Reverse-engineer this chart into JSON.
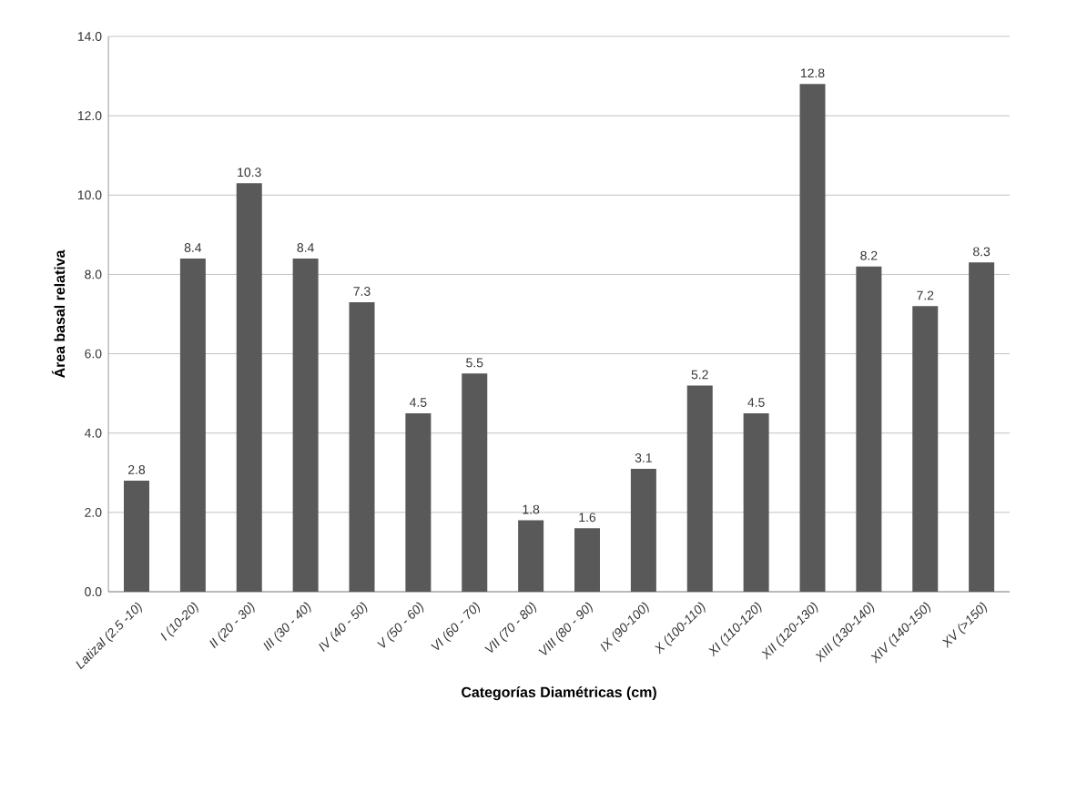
{
  "chart_data": {
    "type": "bar",
    "xlabel": "Categorías Diamétricas  (cm)",
    "ylabel": "Área basal relativa",
    "categories": [
      "Latizal (2.5 -10)",
      "I (10-20)",
      "II (20 - 30)",
      "III (30 - 40)",
      "IV (40 - 50)",
      "V (50 - 60)",
      "VI (60 - 70)",
      "VII (70 - 80)",
      "VIII (80 - 90)",
      "IX (90-100)",
      "X (100-110)",
      "XI (110-120)",
      "XII (120-130)",
      "XIII (130-140)",
      "XIV (140-150)",
      "XV (>150)"
    ],
    "values": [
      2.8,
      8.4,
      10.3,
      8.4,
      7.3,
      4.5,
      5.5,
      1.8,
      1.6,
      3.1,
      5.2,
      4.5,
      12.8,
      8.2,
      7.2,
      8.3
    ],
    "color": "#595959",
    "ylim": [
      0,
      14
    ],
    "yticks": [
      {
        "value": 0,
        "label": "0.0"
      },
      {
        "value": 2,
        "label": "2.0"
      },
      {
        "value": 4,
        "label": "4.0"
      },
      {
        "value": 6,
        "label": "6.0"
      },
      {
        "value": 8,
        "label": "8.0"
      },
      {
        "value": 10,
        "label": "10.0"
      },
      {
        "value": 12,
        "label": "12.0"
      },
      {
        "value": 14,
        "label": "14.0"
      }
    ],
    "grid": "y",
    "data_labels": true
  }
}
